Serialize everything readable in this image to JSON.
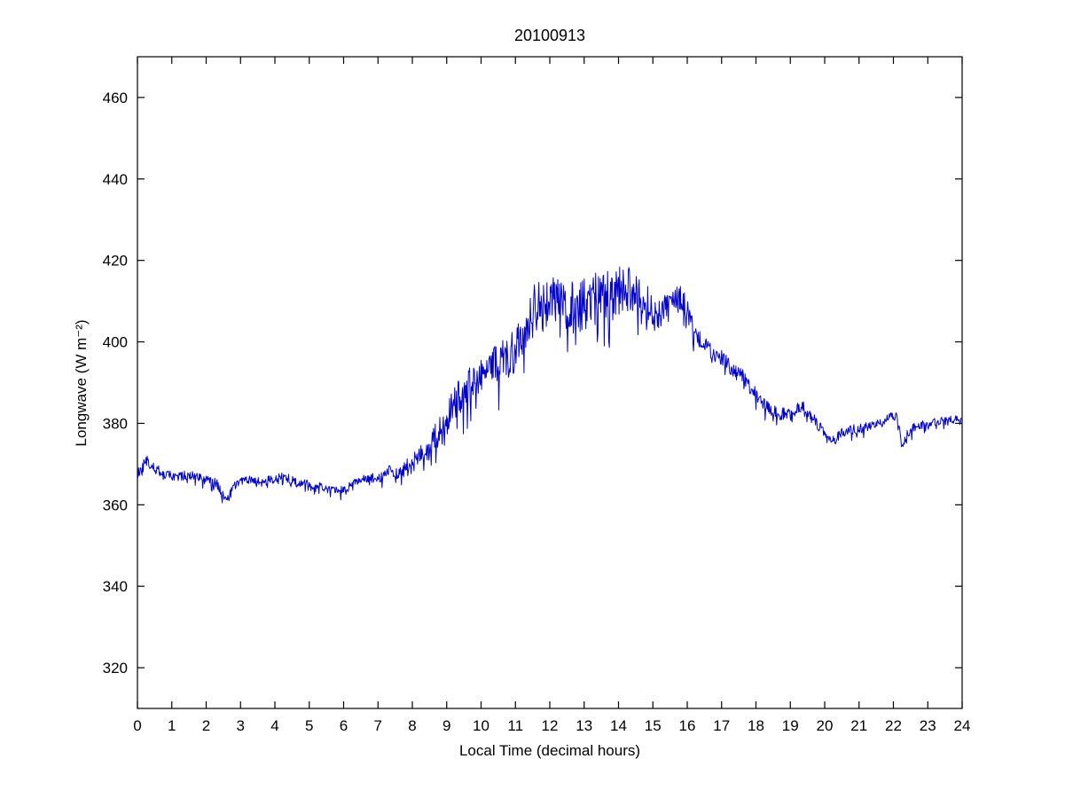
{
  "chart_data": {
    "type": "line",
    "title": "20100913",
    "xlabel": "Local Time (decimal hours)",
    "ylabel": "Longwave (W m⁻²)",
    "xlim": [
      0,
      24
    ],
    "ylim": [
      310,
      470
    ],
    "xticks": [
      0,
      1,
      2,
      3,
      4,
      5,
      6,
      7,
      8,
      9,
      10,
      11,
      12,
      13,
      14,
      15,
      16,
      17,
      18,
      19,
      20,
      21,
      22,
      23,
      24
    ],
    "yticks": [
      320,
      340,
      360,
      380,
      400,
      420,
      440,
      460
    ],
    "grid": false,
    "legend": "none",
    "line_color": "#0000cc",
    "background": "#ffffff",
    "sample_step_hours": 0.0166667,
    "series": [
      {
        "name": "longwave",
        "units": "W m-2",
        "mean_keypoints": [
          [
            0,
            367.5
          ],
          [
            0.25,
            371
          ],
          [
            0.5,
            369
          ],
          [
            0.8,
            367.5
          ],
          [
            1.2,
            367
          ],
          [
            1.6,
            367.5
          ],
          [
            2,
            366
          ],
          [
            2.3,
            365.5
          ],
          [
            2.55,
            361
          ],
          [
            2.8,
            364.5
          ],
          [
            3,
            365.5
          ],
          [
            3.3,
            366
          ],
          [
            3.6,
            365.5
          ],
          [
            4,
            366.5
          ],
          [
            4.3,
            367
          ],
          [
            4.6,
            365.5
          ],
          [
            5,
            365
          ],
          [
            5.3,
            364.5
          ],
          [
            5.6,
            363.5
          ],
          [
            5.9,
            363.5
          ],
          [
            6.1,
            364
          ],
          [
            6.4,
            366
          ],
          [
            6.7,
            366.5
          ],
          [
            7,
            366.5
          ],
          [
            7.3,
            368
          ],
          [
            7.6,
            368
          ],
          [
            7.9,
            369.5
          ],
          [
            8.1,
            371
          ],
          [
            8.3,
            372.5
          ],
          [
            8.5,
            374
          ],
          [
            8.7,
            377
          ],
          [
            9,
            381
          ],
          [
            9.3,
            386
          ],
          [
            9.6,
            389
          ],
          [
            9.9,
            391
          ],
          [
            10.2,
            393
          ],
          [
            10.5,
            395
          ],
          [
            10.8,
            396.5
          ],
          [
            11,
            398
          ],
          [
            11.2,
            402
          ],
          [
            11.4,
            407
          ],
          [
            11.8,
            409
          ],
          [
            12,
            410
          ],
          [
            12.3,
            409
          ],
          [
            12.6,
            408.5
          ],
          [
            13,
            409.5
          ],
          [
            13.3,
            410.5
          ],
          [
            13.6,
            411
          ],
          [
            14,
            412.5
          ],
          [
            14.3,
            413
          ],
          [
            14.6,
            411.5
          ],
          [
            15,
            408
          ],
          [
            15.2,
            406.5
          ],
          [
            15.5,
            410
          ],
          [
            15.8,
            411
          ],
          [
            16,
            408
          ],
          [
            16.2,
            404
          ],
          [
            16.4,
            400
          ],
          [
            16.7,
            398
          ],
          [
            17,
            396
          ],
          [
            17.3,
            393.5
          ],
          [
            17.6,
            391.5
          ],
          [
            18,
            387.5
          ],
          [
            18.3,
            384
          ],
          [
            18.6,
            382.5
          ],
          [
            19,
            382
          ],
          [
            19.2,
            383.5
          ],
          [
            19.4,
            384
          ],
          [
            19.7,
            381
          ],
          [
            20,
            377.5
          ],
          [
            20.3,
            376
          ],
          [
            20.5,
            377.5
          ],
          [
            20.8,
            378.5
          ],
          [
            21,
            378.5
          ],
          [
            21.3,
            379.5
          ],
          [
            21.6,
            380
          ],
          [
            22,
            382
          ],
          [
            22.1,
            381.5
          ],
          [
            22.25,
            374.5
          ],
          [
            22.4,
            377.5
          ],
          [
            22.6,
            379
          ],
          [
            23,
            380
          ],
          [
            23.3,
            380.5
          ],
          [
            23.6,
            380.5
          ],
          [
            24,
            381.5
          ]
        ],
        "noise_amp_keypoints": [
          [
            0,
            1.3
          ],
          [
            2,
            1.2
          ],
          [
            6,
            1
          ],
          [
            7,
            1.3
          ],
          [
            8,
            2.5
          ],
          [
            8.5,
            3
          ],
          [
            9,
            4
          ],
          [
            9.5,
            4.5
          ],
          [
            10,
            4.5
          ],
          [
            10.5,
            5
          ],
          [
            11,
            5.5
          ],
          [
            11.5,
            6.5
          ],
          [
            12,
            6.5
          ],
          [
            13,
            6.5
          ],
          [
            13.5,
            6.5
          ],
          [
            14,
            6
          ],
          [
            14.5,
            5
          ],
          [
            15,
            4
          ],
          [
            15.5,
            3
          ],
          [
            16,
            3
          ],
          [
            16.5,
            2.2
          ],
          [
            17,
            2
          ],
          [
            18,
            1.8
          ],
          [
            19,
            1.5
          ],
          [
            20,
            1.3
          ],
          [
            21,
            1.2
          ],
          [
            22,
            1.2
          ],
          [
            23,
            1
          ],
          [
            24,
            1.2
          ]
        ]
      }
    ]
  }
}
